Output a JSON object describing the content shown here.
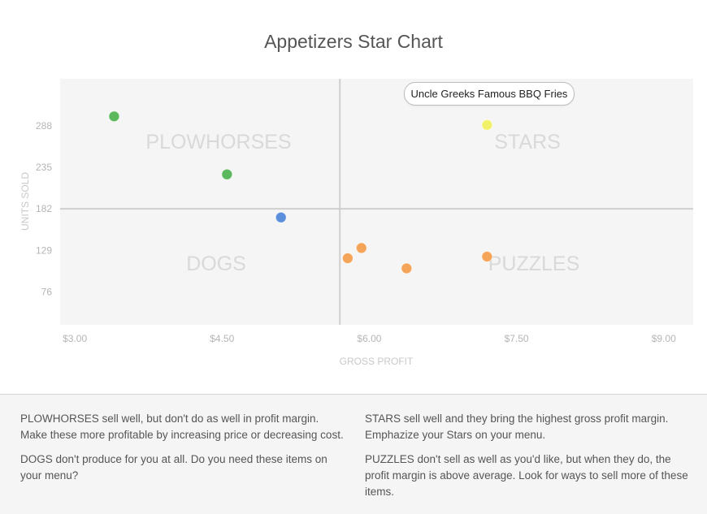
{
  "chart_data": {
    "type": "scatter",
    "title": "Appetizers Star Chart",
    "xlabel": "GROSS PROFIT",
    "ylabel": "UNITS SOLD",
    "xlim": [
      2.85,
      9.3
    ],
    "ylim": [
      34,
      348
    ],
    "x_ticks": [
      3.0,
      4.5,
      6.0,
      7.5,
      9.0
    ],
    "x_tick_labels": [
      "$3.00",
      "$4.50",
      "$6.00",
      "$7.50",
      "$9.00"
    ],
    "y_ticks": [
      76,
      129,
      182,
      235,
      288
    ],
    "y_tick_labels": [
      "76",
      "129",
      "182",
      "235",
      "288"
    ],
    "quadrant_split": {
      "x": 5.7,
      "y": 182
    },
    "quadrant_labels": {
      "top_left": "PLOWHORSES",
      "top_right": "STARS",
      "bottom_left": "DOGS",
      "bottom_right": "PUZZLES"
    },
    "points": [
      {
        "x": 3.4,
        "y": 300,
        "color": "#5cb85c",
        "quadrant": "PLOWHORSES"
      },
      {
        "x": 4.55,
        "y": 226,
        "color": "#5cb85c",
        "quadrant": "PLOWHORSES"
      },
      {
        "x": 5.1,
        "y": 171,
        "color": "#5b8fdb",
        "quadrant": "DOGS"
      },
      {
        "x": 7.2,
        "y": 289,
        "color": "#f2f26a",
        "quadrant": "STARS",
        "label": "Uncle Greeks Famous BBQ Fries"
      },
      {
        "x": 5.78,
        "y": 119,
        "color": "#f5a55a",
        "quadrant": "PUZZLES"
      },
      {
        "x": 5.92,
        "y": 132,
        "color": "#f5a55a",
        "quadrant": "PUZZLES"
      },
      {
        "x": 6.38,
        "y": 106,
        "color": "#f5a55a",
        "quadrant": "PUZZLES"
      },
      {
        "x": 7.2,
        "y": 121,
        "color": "#f5a55a",
        "quadrant": "PUZZLES"
      }
    ],
    "highlighted_point_label": "Uncle Greeks Famous BBQ Fries",
    "grid": false
  },
  "notes": {
    "plowhorses": {
      "keyword": "PLOWHORSES",
      "text": " sell well, but don't do as well in profit margin. Make these more profitable by increasing price or decreasing cost."
    },
    "dogs": {
      "keyword": "DOGS",
      "text": " don't produce for you at all. Do you need these items on your menu?"
    },
    "stars": {
      "keyword": "STARS",
      "text": " sell well and they bring the highest gross profit margin. Emphazize your Stars on your menu."
    },
    "puzzles": {
      "keyword": "PUZZLES",
      "text": " don't sell as well as you'd like, but when they do, the profit margin is above average. Look for ways to sell more of these items."
    }
  }
}
